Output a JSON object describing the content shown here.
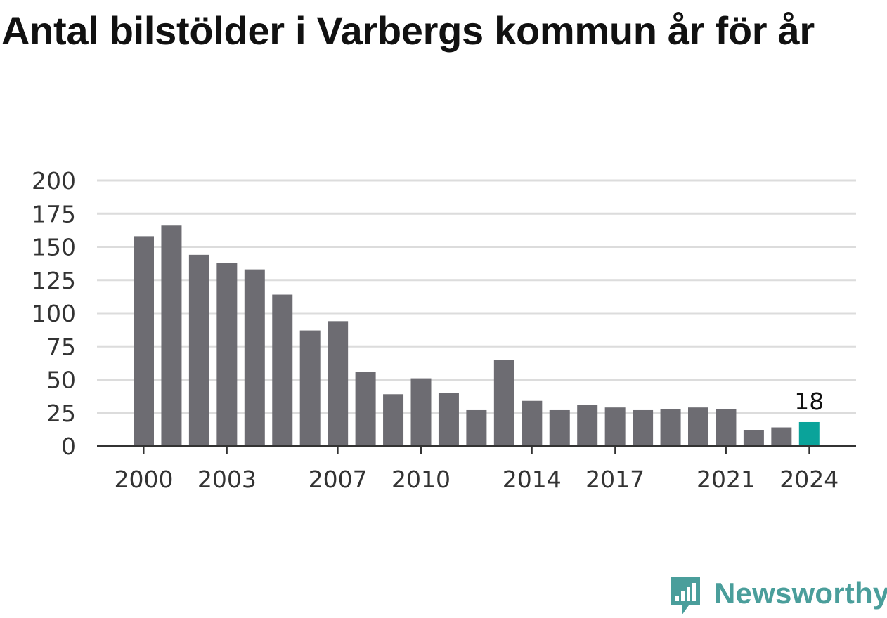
{
  "title": "Antal bilstölder i Varbergs kommun år för år",
  "colors": {
    "bar": "#6d6c72",
    "highlight": "#0aa39a",
    "grid": "#dcdcdc",
    "axis": "#333333",
    "brand": "#4a9e9b"
  },
  "chart_data": {
    "type": "bar",
    "title": "Antal bilstölder i Varbergs kommun år för år",
    "xlabel": "",
    "ylabel": "",
    "categories": [
      "2000",
      "2001",
      "2002",
      "2003",
      "2004",
      "2005",
      "2006",
      "2007",
      "2008",
      "2009",
      "2010",
      "2011",
      "2012",
      "2013",
      "2014",
      "2015",
      "2016",
      "2017",
      "2018",
      "2019",
      "2020",
      "2021",
      "2022",
      "2023",
      "2024"
    ],
    "values": [
      158,
      166,
      144,
      138,
      133,
      114,
      87,
      94,
      56,
      39,
      51,
      40,
      27,
      65,
      34,
      27,
      31,
      29,
      27,
      28,
      29,
      28,
      12,
      14,
      18
    ],
    "ylim": [
      0,
      200
    ],
    "yticks": [
      0,
      25,
      50,
      75,
      100,
      125,
      150,
      175,
      200
    ],
    "xtick_labels": [
      "2000",
      "2003",
      "2007",
      "2010",
      "2014",
      "2017",
      "2021",
      "2024"
    ],
    "highlight_category": "2024",
    "data_labels": [
      {
        "category": "2024",
        "text": "18"
      }
    ],
    "grid": true,
    "legend": "none"
  },
  "brand": {
    "name": "Newsworthy",
    "icon": "newsworthy-logo-icon"
  }
}
